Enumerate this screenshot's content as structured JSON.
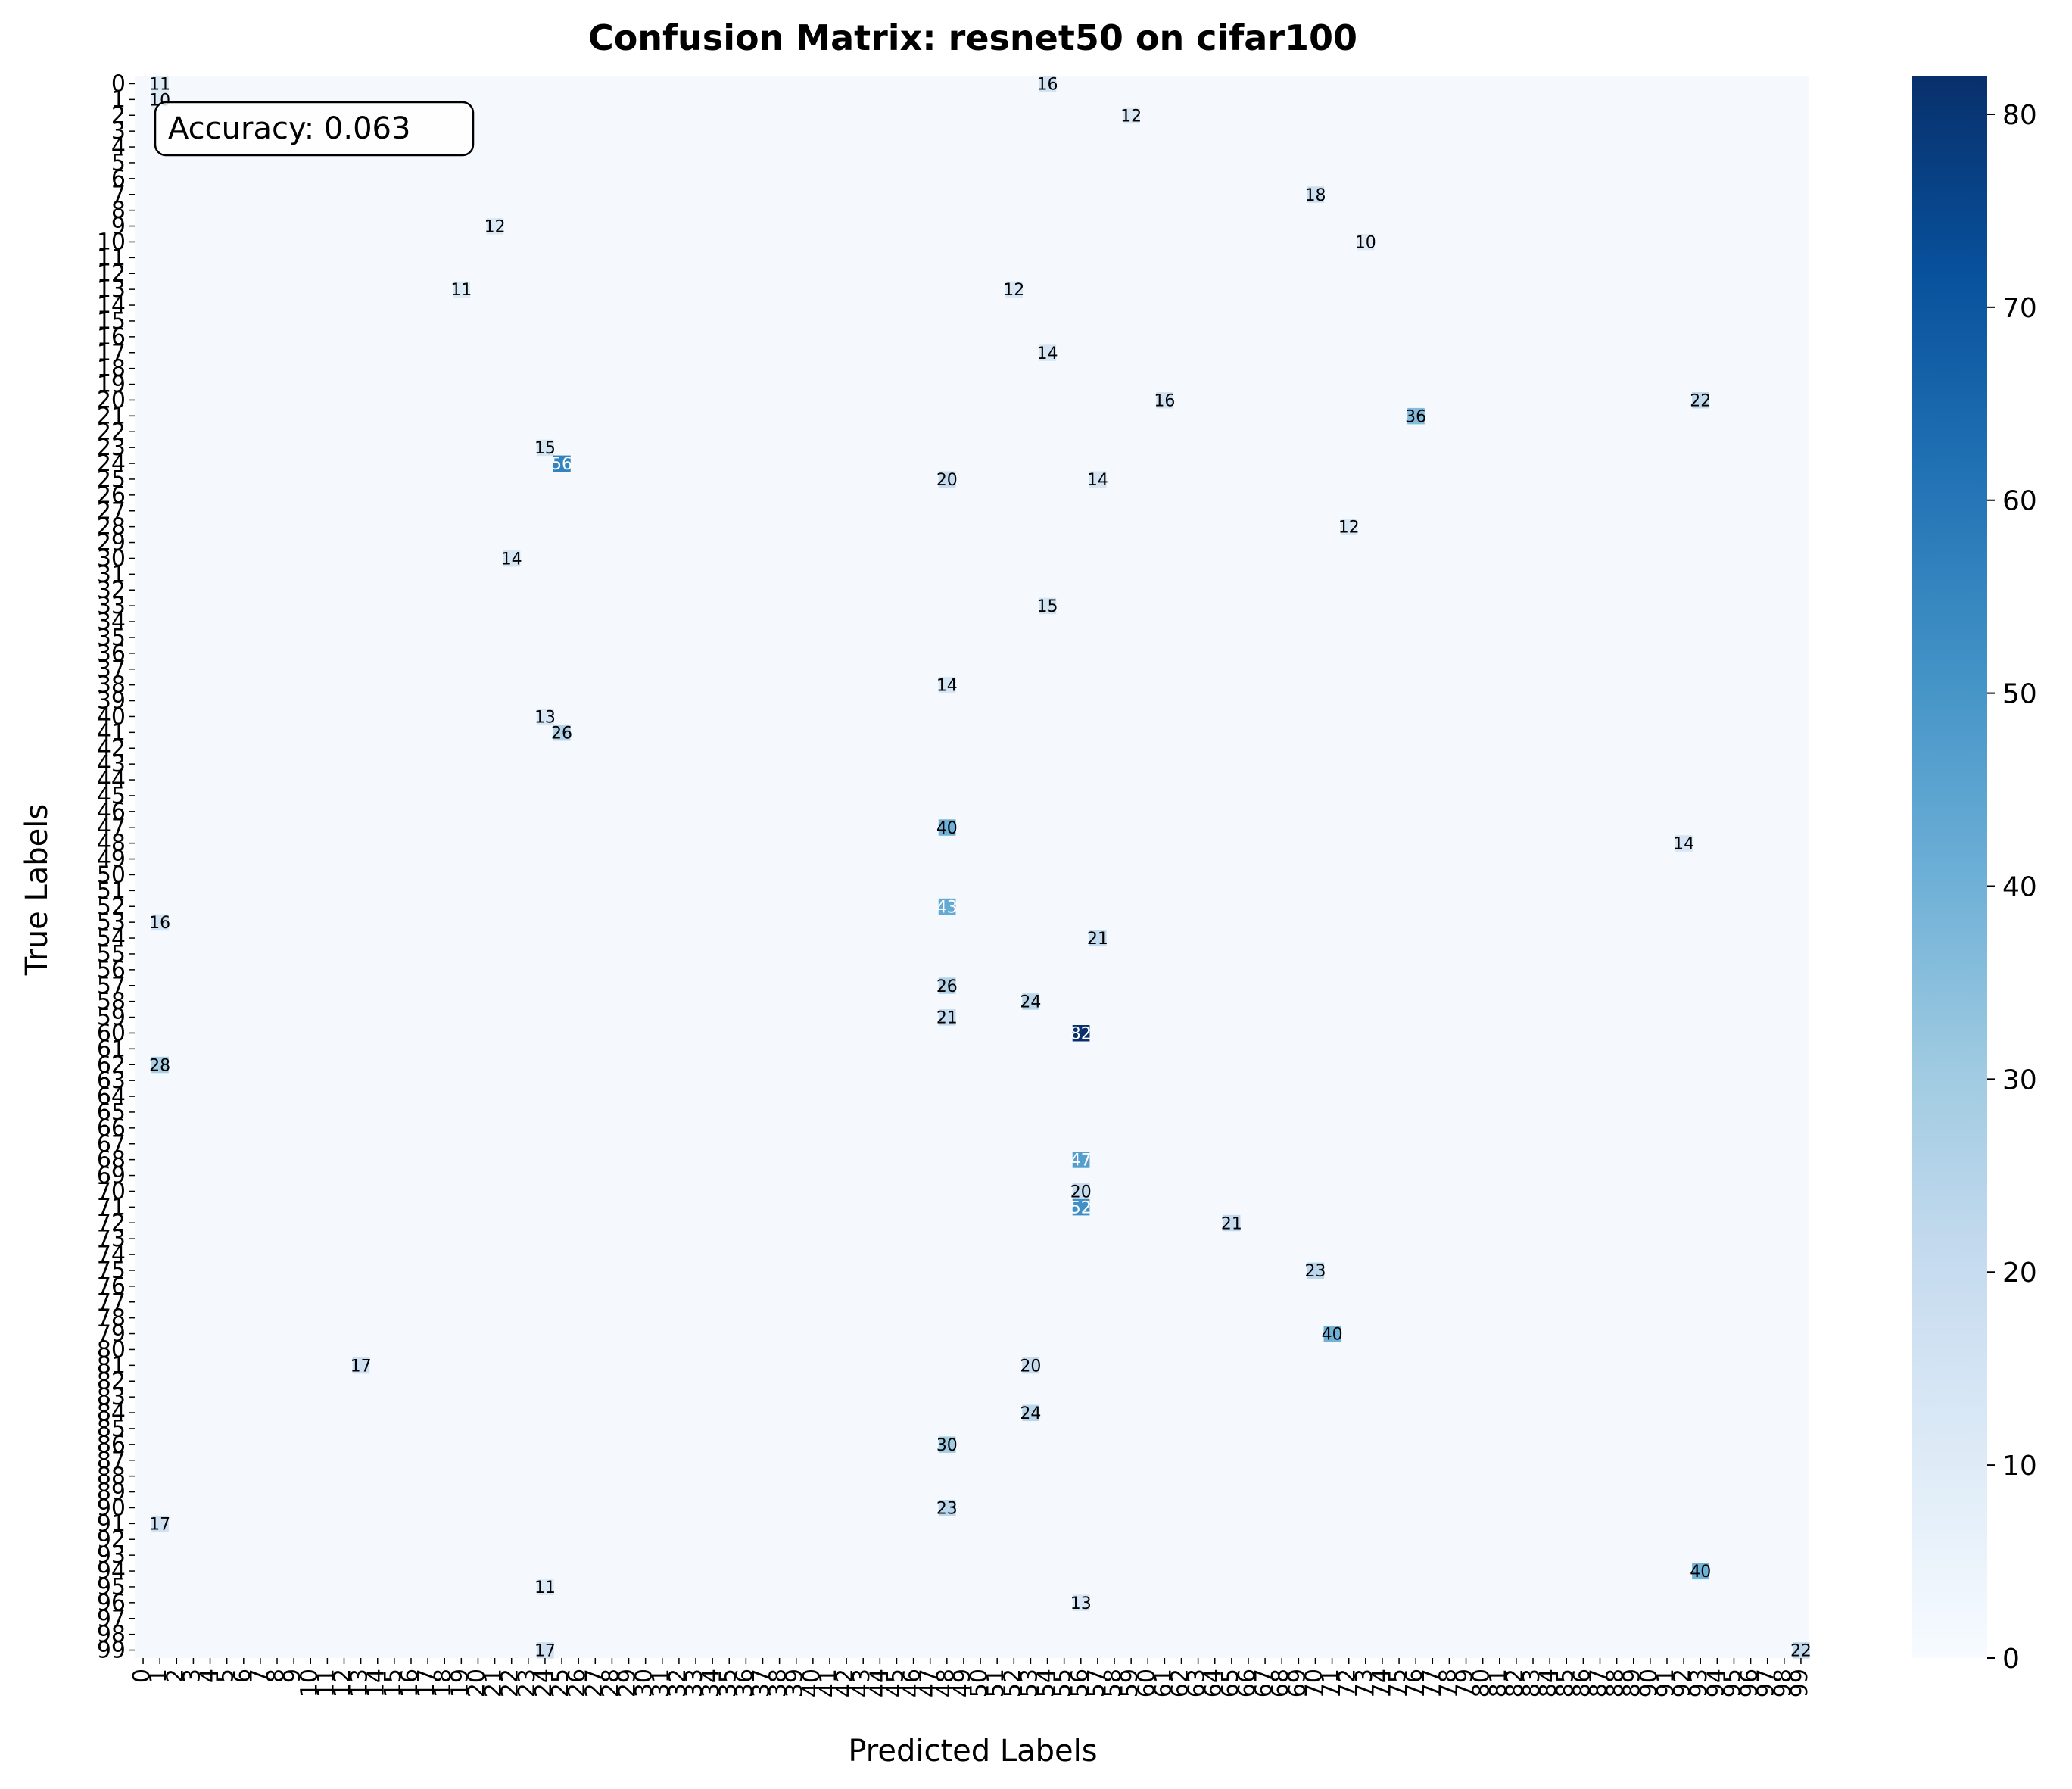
{
  "chart_data": {
    "type": "heatmap",
    "title": "Confusion Matrix: resnet50 on cifar100",
    "xlabel": "Predicted Labels",
    "ylabel": "True Labels",
    "annotation": "Accuracy: 0.063",
    "n_classes": 100,
    "x_tick_labels": [
      "0",
      "1",
      "2",
      "3",
      "4",
      "5",
      "6",
      "7",
      "8",
      "9",
      "10",
      "11",
      "12",
      "13",
      "14",
      "15",
      "16",
      "17",
      "18",
      "19",
      "20",
      "21",
      "22",
      "23",
      "24",
      "25",
      "26",
      "27",
      "28",
      "29",
      "30",
      "31",
      "32",
      "33",
      "34",
      "35",
      "36",
      "37",
      "38",
      "39",
      "40",
      "41",
      "42",
      "43",
      "44",
      "45",
      "46",
      "47",
      "48",
      "49",
      "50",
      "51",
      "52",
      "53",
      "54",
      "55",
      "56",
      "57",
      "58",
      "59",
      "60",
      "61",
      "62",
      "63",
      "64",
      "65",
      "66",
      "67",
      "68",
      "69",
      "70",
      "71",
      "72",
      "73",
      "74",
      "75",
      "76",
      "77",
      "78",
      "79",
      "80",
      "81",
      "82",
      "83",
      "84",
      "85",
      "86",
      "87",
      "88",
      "89",
      "90",
      "91",
      "92",
      "93",
      "94",
      "95",
      "96",
      "97",
      "98",
      "99"
    ],
    "y_tick_labels": [
      "0",
      "1",
      "2",
      "3",
      "4",
      "5",
      "6",
      "7",
      "8",
      "9",
      "10",
      "11",
      "12",
      "13",
      "14",
      "15",
      "16",
      "17",
      "18",
      "19",
      "20",
      "21",
      "22",
      "23",
      "24",
      "25",
      "26",
      "27",
      "28",
      "29",
      "30",
      "31",
      "32",
      "33",
      "34",
      "35",
      "36",
      "37",
      "38",
      "39",
      "40",
      "41",
      "42",
      "43",
      "44",
      "45",
      "46",
      "47",
      "48",
      "49",
      "50",
      "51",
      "52",
      "53",
      "54",
      "55",
      "56",
      "57",
      "58",
      "59",
      "60",
      "61",
      "62",
      "63",
      "64",
      "65",
      "66",
      "67",
      "68",
      "69",
      "70",
      "71",
      "72",
      "73",
      "74",
      "75",
      "76",
      "77",
      "78",
      "79",
      "80",
      "81",
      "82",
      "83",
      "84",
      "85",
      "86",
      "87",
      "88",
      "89",
      "90",
      "91",
      "92",
      "93",
      "94",
      "95",
      "96",
      "97",
      "98",
      "99"
    ],
    "colorbar": {
      "colormap": "Blues",
      "vmin": 0,
      "vmax": 82,
      "ticks": [
        0,
        10,
        20,
        30,
        40,
        50,
        60,
        70,
        80
      ]
    },
    "background_value": 1,
    "highlight_cells": [
      {
        "row": 0,
        "col": 1,
        "value": 11
      },
      {
        "row": 0,
        "col": 54,
        "value": 16
      },
      {
        "row": 1,
        "col": 1,
        "value": 10
      },
      {
        "row": 2,
        "col": 59,
        "value": 12
      },
      {
        "row": 7,
        "col": 70,
        "value": 18
      },
      {
        "row": 9,
        "col": 21,
        "value": 12
      },
      {
        "row": 10,
        "col": 73,
        "value": 10
      },
      {
        "row": 13,
        "col": 19,
        "value": 11
      },
      {
        "row": 13,
        "col": 52,
        "value": 12
      },
      {
        "row": 17,
        "col": 54,
        "value": 14
      },
      {
        "row": 20,
        "col": 61,
        "value": 16
      },
      {
        "row": 20,
        "col": 93,
        "value": 22
      },
      {
        "row": 21,
        "col": 76,
        "value": 36
      },
      {
        "row": 23,
        "col": 24,
        "value": 15
      },
      {
        "row": 24,
        "col": 25,
        "value": 56
      },
      {
        "row": 25,
        "col": 48,
        "value": 20
      },
      {
        "row": 25,
        "col": 57,
        "value": 14
      },
      {
        "row": 28,
        "col": 72,
        "value": 12
      },
      {
        "row": 30,
        "col": 22,
        "value": 14
      },
      {
        "row": 33,
        "col": 54,
        "value": 15
      },
      {
        "row": 38,
        "col": 48,
        "value": 14
      },
      {
        "row": 40,
        "col": 24,
        "value": 13
      },
      {
        "row": 41,
        "col": 25,
        "value": 26
      },
      {
        "row": 47,
        "col": 48,
        "value": 40
      },
      {
        "row": 48,
        "col": 92,
        "value": 14
      },
      {
        "row": 52,
        "col": 48,
        "value": 43
      },
      {
        "row": 53,
        "col": 1,
        "value": 16
      },
      {
        "row": 54,
        "col": 57,
        "value": 21
      },
      {
        "row": 57,
        "col": 48,
        "value": 26
      },
      {
        "row": 58,
        "col": 53,
        "value": 24
      },
      {
        "row": 59,
        "col": 48,
        "value": 21
      },
      {
        "row": 60,
        "col": 56,
        "value": 82
      },
      {
        "row": 62,
        "col": 1,
        "value": 28
      },
      {
        "row": 68,
        "col": 56,
        "value": 47
      },
      {
        "row": 70,
        "col": 56,
        "value": 20
      },
      {
        "row": 71,
        "col": 56,
        "value": 52
      },
      {
        "row": 72,
        "col": 65,
        "value": 21
      },
      {
        "row": 75,
        "col": 70,
        "value": 23
      },
      {
        "row": 79,
        "col": 71,
        "value": 40
      },
      {
        "row": 81,
        "col": 13,
        "value": 17
      },
      {
        "row": 81,
        "col": 53,
        "value": 20
      },
      {
        "row": 84,
        "col": 53,
        "value": 24
      },
      {
        "row": 86,
        "col": 48,
        "value": 30
      },
      {
        "row": 90,
        "col": 48,
        "value": 23
      },
      {
        "row": 91,
        "col": 1,
        "value": 17
      },
      {
        "row": 94,
        "col": 93,
        "value": 40
      },
      {
        "row": 95,
        "col": 24,
        "value": 11
      },
      {
        "row": 96,
        "col": 56,
        "value": 13
      },
      {
        "row": 99,
        "col": 24,
        "value": 17
      },
      {
        "row": 99,
        "col": 99,
        "value": 22
      }
    ]
  }
}
